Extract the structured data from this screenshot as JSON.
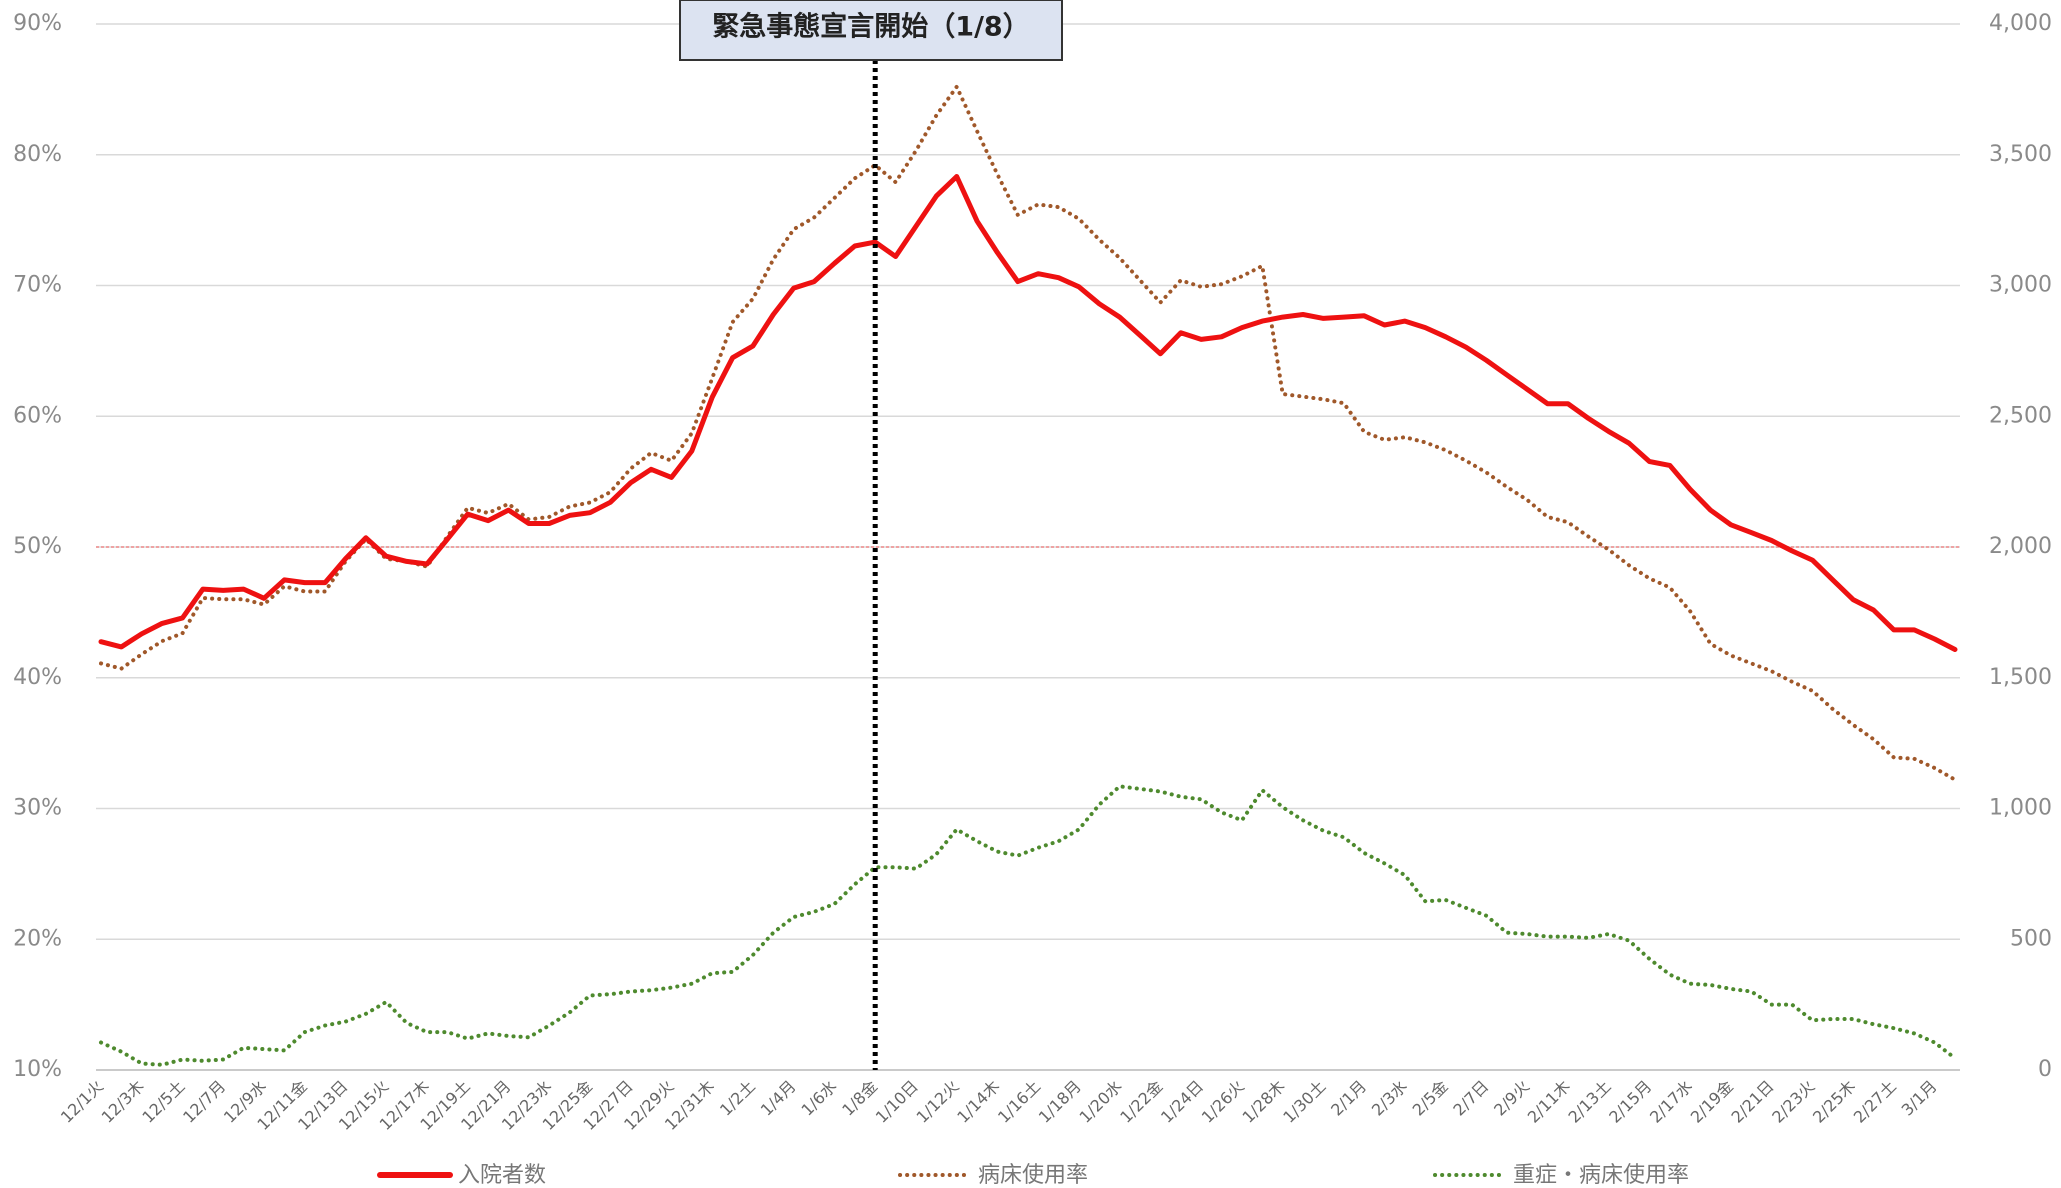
{
  "chart_data": {
    "type": "line",
    "annotation": {
      "text": "緊急事態宣言開始（1/8）",
      "x": "1/8金"
    },
    "reference_line": {
      "value": 50,
      "color": "#f08a8a"
    },
    "categories": [
      "12/1火",
      null,
      "12/3木",
      null,
      "12/5土",
      null,
      "12/7月",
      null,
      "12/9水",
      null,
      "12/11金",
      null,
      "12/13日",
      null,
      "12/15火",
      null,
      "12/17木",
      null,
      "12/19土",
      null,
      "12/21月",
      null,
      "12/23水",
      null,
      "12/25金",
      null,
      "12/27日",
      null,
      "12/29火",
      null,
      "12/31木",
      null,
      "1/2土",
      null,
      "1/4月",
      null,
      "1/6水",
      null,
      "1/8金",
      null,
      "1/10日",
      null,
      "1/12火",
      null,
      "1/14木",
      null,
      "1/16土",
      null,
      "1/18月",
      null,
      "1/20水",
      null,
      "1/22金",
      null,
      "1/24日",
      null,
      "1/26火",
      null,
      "1/28木",
      null,
      "1/30土",
      null,
      "2/1月",
      null,
      "2/3水",
      null,
      "2/5金",
      null,
      "2/7日",
      null,
      "2/9火",
      null,
      "2/11木",
      null,
      "2/13土",
      null,
      "2/15月",
      null,
      "2/17水",
      null,
      "2/19金",
      null,
      "2/21日",
      null,
      "2/23火",
      null,
      "2/25木",
      null,
      "2/27土",
      null,
      "3/1月",
      null
    ],
    "series": [
      {
        "name": "入院者数",
        "color": "#ee1111",
        "style": "solid",
        "axis": "y2",
        "values": [
          1638,
          1618,
          1668,
          1708,
          1729,
          1839,
          1834,
          1839,
          1804,
          1874,
          1864,
          1864,
          1955,
          2035,
          1965,
          1945,
          1935,
          2030,
          2126,
          2101,
          2141,
          2090,
          2090,
          2121,
          2131,
          2171,
          2246,
          2297,
          2266,
          2367,
          2573,
          2724,
          2769,
          2889,
          2990,
          3015,
          3085,
          3151,
          3166,
          3111,
          3226,
          3342,
          3417,
          3246,
          3126,
          3015,
          3045,
          3030,
          2995,
          2930,
          2879,
          2809,
          2739,
          2819,
          2794,
          2804,
          2839,
          2864,
          2879,
          2889,
          2874,
          2879,
          2884,
          2849,
          2864,
          2839,
          2804,
          2764,
          2714,
          2658,
          2603,
          2548,
          2548,
          2492,
          2442,
          2397,
          2327,
          2312,
          2221,
          2141,
          2085,
          2055,
          2025,
          1985,
          1950,
          1874,
          1799,
          1759,
          1683,
          1683,
          1648,
          1608
        ]
      },
      {
        "name": "病床使用率",
        "color": "#a0582a",
        "style": "dotted",
        "values": [
          41.1,
          40.7,
          41.8,
          42.8,
          43.4,
          46.1,
          46.0,
          46.0,
          45.6,
          47.0,
          46.6,
          46.6,
          48.9,
          50.6,
          49.1,
          48.9,
          48.5,
          50.8,
          53.0,
          52.6,
          53.3,
          52.1,
          52.3,
          53.1,
          53.4,
          54.2,
          56.0,
          57.2,
          56.6,
          58.7,
          62.9,
          67.2,
          69.0,
          72.0,
          74.3,
          75.2,
          76.7,
          78.2,
          79.2,
          77.9,
          80.3,
          83.0,
          85.2,
          81.8,
          78.5,
          75.4,
          76.2,
          76.0,
          75.1,
          73.5,
          72.1,
          70.4,
          68.7,
          70.4,
          69.9,
          70.1,
          70.7,
          71.5,
          61.7,
          61.5,
          61.3,
          61.0,
          58.8,
          58.2,
          58.4,
          58.0,
          57.4,
          56.6,
          55.7,
          54.6,
          53.6,
          52.3,
          51.9,
          50.8,
          49.8,
          48.6,
          47.6,
          46.9,
          45.1,
          42.6,
          41.7,
          41.1,
          40.5,
          39.7,
          39.0,
          37.6,
          36.4,
          35.3,
          33.9,
          33.8,
          33.1,
          32.2
        ]
      },
      {
        "name": "重症・病床使用率",
        "color": "#4e8a2e",
        "style": "dotted",
        "values": [
          12.1,
          11.4,
          10.5,
          10.4,
          10.8,
          10.7,
          10.8,
          11.7,
          11.6,
          11.5,
          12.9,
          13.4,
          13.7,
          14.3,
          15.2,
          13.6,
          12.9,
          12.9,
          12.4,
          12.8,
          12.6,
          12.5,
          13.4,
          14.4,
          15.7,
          15.8,
          16.0,
          16.1,
          16.3,
          16.6,
          17.4,
          17.5,
          18.8,
          20.5,
          21.7,
          22.1,
          22.7,
          24.2,
          25.5,
          25.5,
          25.4,
          26.5,
          28.4,
          27.5,
          26.7,
          26.4,
          27.0,
          27.5,
          28.4,
          30.3,
          31.7,
          31.5,
          31.3,
          30.9,
          30.7,
          29.7,
          29.1,
          31.4,
          30.1,
          29.1,
          28.3,
          27.8,
          26.6,
          25.8,
          24.9,
          22.9,
          23.0,
          22.4,
          21.8,
          20.5,
          20.4,
          20.2,
          20.2,
          20.1,
          20.4,
          19.9,
          18.5,
          17.3,
          16.6,
          16.5,
          16.2,
          16.0,
          15.0,
          15.0,
          13.8,
          13.9,
          13.9,
          13.5,
          13.2,
          12.8,
          12.1,
          10.9
        ]
      }
    ],
    "ylim": [
      10,
      90
    ],
    "yticks": [
      {
        "value": 10,
        "label": "10%"
      },
      {
        "value": 20,
        "label": "20%"
      },
      {
        "value": 30,
        "label": "30%"
      },
      {
        "value": 40,
        "label": "40%"
      },
      {
        "value": 50,
        "label": "50%"
      },
      {
        "value": 60,
        "label": "60%"
      },
      {
        "value": 70,
        "label": "70%"
      },
      {
        "value": 80,
        "label": "80%"
      },
      {
        "value": 90,
        "label": "90%"
      }
    ],
    "y2lim": [
      0,
      4000
    ],
    "y2ticks": [
      0,
      500,
      {
        "value": 1000,
        "label": "1,000"
      },
      {
        "value": 1500,
        "label": "1,500"
      },
      {
        "value": 2000,
        "label": "2,000"
      },
      {
        "value": 2500,
        "label": "2,500"
      },
      {
        "value": 3000,
        "label": "3,000"
      },
      {
        "value": 3500,
        "label": "3,500"
      },
      {
        "value": 4000,
        "label": "4,000"
      }
    ],
    "grid": true
  }
}
